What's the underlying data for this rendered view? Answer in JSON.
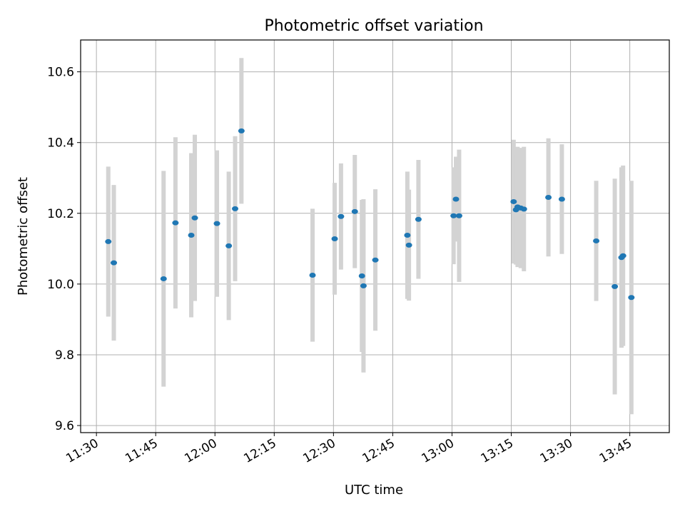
{
  "chart_data": {
    "type": "scatter",
    "title": "Photometric offset variation",
    "xlabel": "UTC time",
    "ylabel": "Photometric offset",
    "xlim": [
      "11:26",
      "13:55"
    ],
    "ylim": [
      9.58,
      10.69
    ],
    "xticks": [
      "11:30",
      "11:45",
      "12:00",
      "12:15",
      "12:30",
      "12:45",
      "13:00",
      "13:15",
      "13:30",
      "13:45"
    ],
    "yticks": [
      9.6,
      9.8,
      10.0,
      10.2,
      10.4,
      10.6
    ],
    "ytick_labels": [
      "9.6",
      "9.8",
      "10.0",
      "10.2",
      "10.4",
      "10.6"
    ],
    "grid": true,
    "colors": {
      "point": "#1f77b4",
      "errorbar": "#d3d3d3",
      "grid": "#b0b0b0"
    },
    "points": [
      {
        "x": "11:33:00",
        "y": 10.12,
        "err": 0.212
      },
      {
        "x": "11:34:24",
        "y": 10.06,
        "err": 0.22
      },
      {
        "x": "11:47:00",
        "y": 10.015,
        "err": 0.305
      },
      {
        "x": "11:50:00",
        "y": 10.173,
        "err": 0.242
      },
      {
        "x": "11:54:00",
        "y": 10.138,
        "err": 0.232
      },
      {
        "x": "11:54:54",
        "y": 10.187,
        "err": 0.235
      },
      {
        "x": "12:00:30",
        "y": 10.171,
        "err": 0.207
      },
      {
        "x": "12:03:30",
        "y": 10.108,
        "err": 0.21
      },
      {
        "x": "12:05:06",
        "y": 10.213,
        "err": 0.205
      },
      {
        "x": "12:06:42",
        "y": 10.433,
        "err": 0.206
      },
      {
        "x": "12:24:42",
        "y": 10.025,
        "err": 0.188
      },
      {
        "x": "12:30:18",
        "y": 10.128,
        "err": 0.158
      },
      {
        "x": "12:31:54",
        "y": 10.191,
        "err": 0.15
      },
      {
        "x": "12:35:24",
        "y": 10.205,
        "err": 0.16
      },
      {
        "x": "12:37:12",
        "y": 10.023,
        "err": 0.215
      },
      {
        "x": "12:37:36",
        "y": 9.995,
        "err": 0.245
      },
      {
        "x": "12:40:36",
        "y": 10.068,
        "err": 0.2
      },
      {
        "x": "12:48:42",
        "y": 10.138,
        "err": 0.18
      },
      {
        "x": "12:49:06",
        "y": 10.11,
        "err": 0.157
      },
      {
        "x": "12:51:30",
        "y": 10.183,
        "err": 0.168
      },
      {
        "x": "13:00:24",
        "y": 10.193,
        "err": 0.137
      },
      {
        "x": "13:01:00",
        "y": 10.24,
        "err": 0.12
      },
      {
        "x": "13:01:48",
        "y": 10.193,
        "err": 0.187
      },
      {
        "x": "13:15:36",
        "y": 10.233,
        "err": 0.175
      },
      {
        "x": "13:16:12",
        "y": 10.21,
        "err": 0.155
      },
      {
        "x": "13:16:36",
        "y": 10.218,
        "err": 0.17
      },
      {
        "x": "13:17:24",
        "y": 10.215,
        "err": 0.17
      },
      {
        "x": "13:18:12",
        "y": 10.212,
        "err": 0.176
      },
      {
        "x": "13:24:24",
        "y": 10.245,
        "err": 0.167
      },
      {
        "x": "13:27:48",
        "y": 10.24,
        "err": 0.155
      },
      {
        "x": "13:36:30",
        "y": 10.122,
        "err": 0.17
      },
      {
        "x": "13:41:12",
        "y": 9.993,
        "err": 0.305
      },
      {
        "x": "13:42:54",
        "y": 10.075,
        "err": 0.255
      },
      {
        "x": "13:43:18",
        "y": 10.08,
        "err": 0.255
      },
      {
        "x": "13:45:24",
        "y": 9.962,
        "err": 0.33
      }
    ]
  }
}
